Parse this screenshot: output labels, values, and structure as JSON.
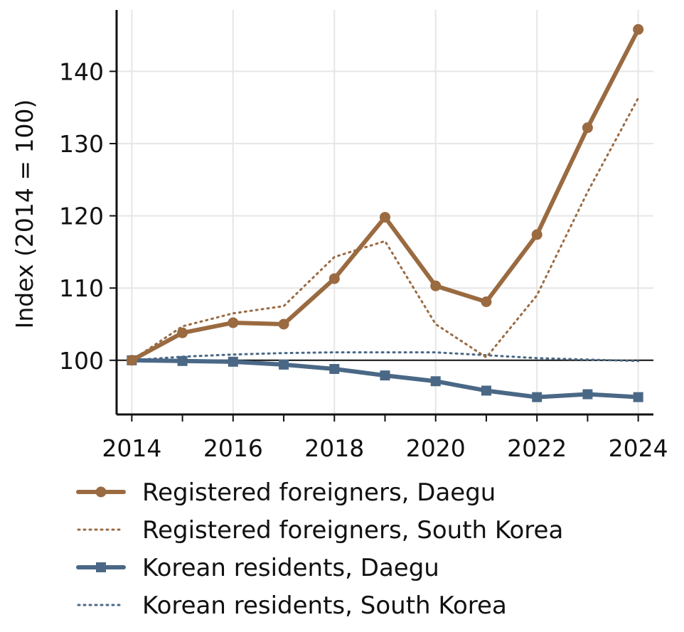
{
  "chart_data": {
    "type": "line",
    "title": "",
    "xlabel": "",
    "ylabel": "Index (2014 = 100)",
    "x": [
      2014,
      2015,
      2016,
      2017,
      2018,
      2019,
      2020,
      2021,
      2022,
      2023,
      2024
    ],
    "xlim": [
      2013.7,
      2024.3
    ],
    "ylim": [
      92.5,
      148.5
    ],
    "xticks": [
      "2014",
      "2016",
      "2018",
      "2020",
      "2022",
      "2024"
    ],
    "yticks": [
      "100",
      "110",
      "120",
      "130",
      "140"
    ],
    "grid": true,
    "reference_line": 100,
    "legend_position": "bottom",
    "series": [
      {
        "name": "Registered foreigners, Daegu",
        "color": "#9a6a40",
        "style": "solid",
        "marker": "circle",
        "values": [
          100,
          103.8,
          105.2,
          105.0,
          111.3,
          119.8,
          110.3,
          108.1,
          117.4,
          132.2,
          145.8
        ]
      },
      {
        "name": "Registered foreigners, South Korea",
        "color": "#9a6a40",
        "style": "dotted",
        "marker": "none",
        "values": [
          100,
          104.7,
          106.5,
          107.5,
          114.3,
          116.5,
          105.0,
          100.4,
          109.0,
          123.3,
          136.3
        ]
      },
      {
        "name": "Korean residents, Daegu",
        "color": "#4a6886",
        "style": "solid",
        "marker": "square",
        "values": [
          100,
          99.9,
          99.8,
          99.4,
          98.8,
          97.9,
          97.1,
          95.8,
          94.9,
          95.3,
          94.9
        ]
      },
      {
        "name": "Korean residents, South Korea",
        "color": "#4a6886",
        "style": "dotted",
        "marker": "none",
        "values": [
          100,
          100.5,
          100.8,
          101.0,
          101.1,
          101.1,
          101.1,
          100.7,
          100.3,
          100.1,
          99.9
        ]
      }
    ]
  }
}
